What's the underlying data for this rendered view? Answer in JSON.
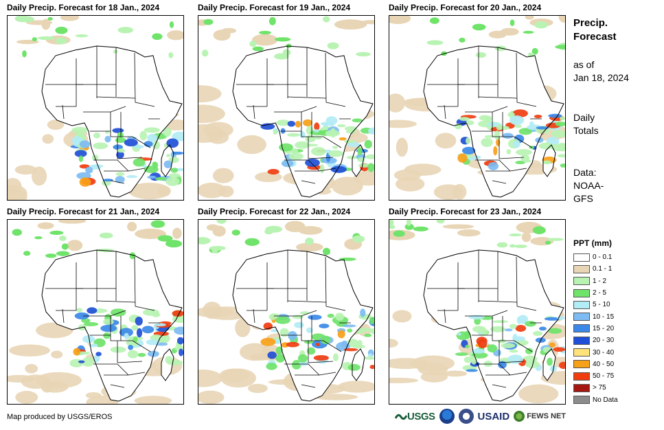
{
  "panels": [
    {
      "title": "Daily Precip. Forecast for 18 Jan., 2024"
    },
    {
      "title": "Daily Precip. Forecast for 19 Jan., 2024"
    },
    {
      "title": "Daily Precip. Forecast for 20 Jan., 2024"
    },
    {
      "title": "Daily Precip. Forecast for 21 Jan., 2024"
    },
    {
      "title": "Daily Precip. Forecast for 22 Jan., 2024"
    },
    {
      "title": "Daily Precip. Forecast for 23 Jan., 2024"
    }
  ],
  "sidebar": {
    "title_line1": "Precip.",
    "title_line2": "Forecast",
    "asof_line1": "as of",
    "asof_line2": "Jan 18, 2024",
    "totals_line1": "Daily",
    "totals_line2": "Totals",
    "data_line1": "Data:",
    "data_line2": "NOAA-",
    "data_line3": "GFS"
  },
  "legend": {
    "title": "PPT (mm)",
    "items": [
      {
        "label": "0 - 0.1",
        "color": "#ffffff"
      },
      {
        "label": "0.1 - 1",
        "color": "#e8d5b5"
      },
      {
        "label": "1 - 2",
        "color": "#b9f3b3"
      },
      {
        "label": "2 - 5",
        "color": "#6fe36a"
      },
      {
        "label": "5 - 10",
        "color": "#b2ecf5"
      },
      {
        "label": "10 - 15",
        "color": "#7dbbf2"
      },
      {
        "label": "15 - 20",
        "color": "#3b88e8"
      },
      {
        "label": "20 - 30",
        "color": "#1f4fd6"
      },
      {
        "label": "30 - 40",
        "color": "#ffe27a"
      },
      {
        "label": "40 - 50",
        "color": "#f7a019"
      },
      {
        "label": "50 - 75",
        "color": "#f03d10"
      },
      {
        "label": "> 75",
        "color": "#a51812"
      },
      {
        "label": "No Data",
        "color": "#8c8c8c"
      }
    ]
  },
  "footer": {
    "credit": "Map produced by USGS/EROS",
    "logo_usgs": "USGS",
    "logo_usaid": "USAID",
    "logo_fews": "FEWS NET"
  }
}
